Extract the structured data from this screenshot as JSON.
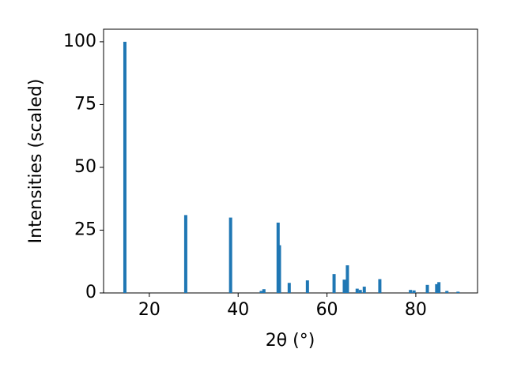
{
  "chart_data": {
    "type": "bar",
    "x_label": "2θ (°)",
    "y_label": "Intensities (scaled)",
    "x": [
      14.5,
      28.2,
      38.3,
      45.2,
      45.8,
      49.0,
      49.3,
      51.5,
      55.6,
      61.6,
      63.9,
      64.6,
      66.8,
      67.5,
      68.4,
      71.9,
      78.8,
      79.6,
      82.6,
      84.7,
      85.2,
      87.0,
      89.5
    ],
    "values": [
      100,
      31,
      30,
      0.8,
      1.5,
      28,
      19,
      4,
      5,
      7.5,
      5.3,
      11,
      1.7,
      1.2,
      2.5,
      5.5,
      1.2,
      1.0,
      3.2,
      3.5,
      4.3,
      0.8,
      0.5
    ],
    "color": "#1f77b4",
    "xlim": [
      9.7,
      93.9
    ],
    "ylim": [
      0,
      105
    ],
    "xticks": [
      20,
      40,
      60,
      80
    ],
    "yticks": [
      0,
      25,
      50,
      75,
      100
    ]
  }
}
